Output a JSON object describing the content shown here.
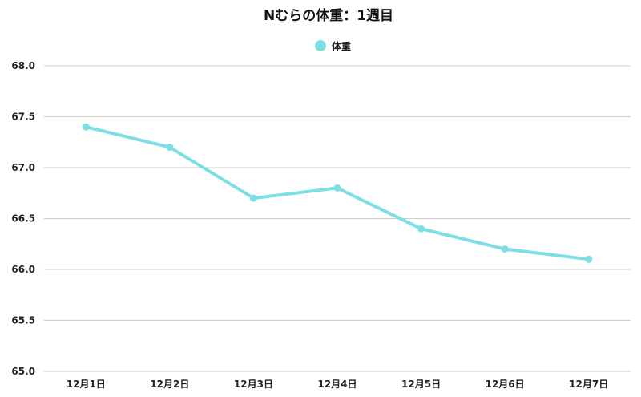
{
  "chart_data": {
    "type": "line",
    "title": "Nむらの体重：1週目",
    "xlabel": "",
    "ylabel": "",
    "categories": [
      "12月1日",
      "12月2日",
      "12月3日",
      "12月4日",
      "12月5日",
      "12月6日",
      "12月7日"
    ],
    "series": [
      {
        "name": "体重",
        "values": [
          67.4,
          67.2,
          66.7,
          66.8,
          66.4,
          66.2,
          66.1
        ],
        "color": "#7ddfe3"
      }
    ],
    "ylim": [
      65.0,
      68.0
    ],
    "yticks": [
      "65.0",
      "65.5",
      "66.0",
      "66.5",
      "67.0",
      "67.5",
      "68.0"
    ],
    "grid": true,
    "legend_position": "top-center"
  }
}
